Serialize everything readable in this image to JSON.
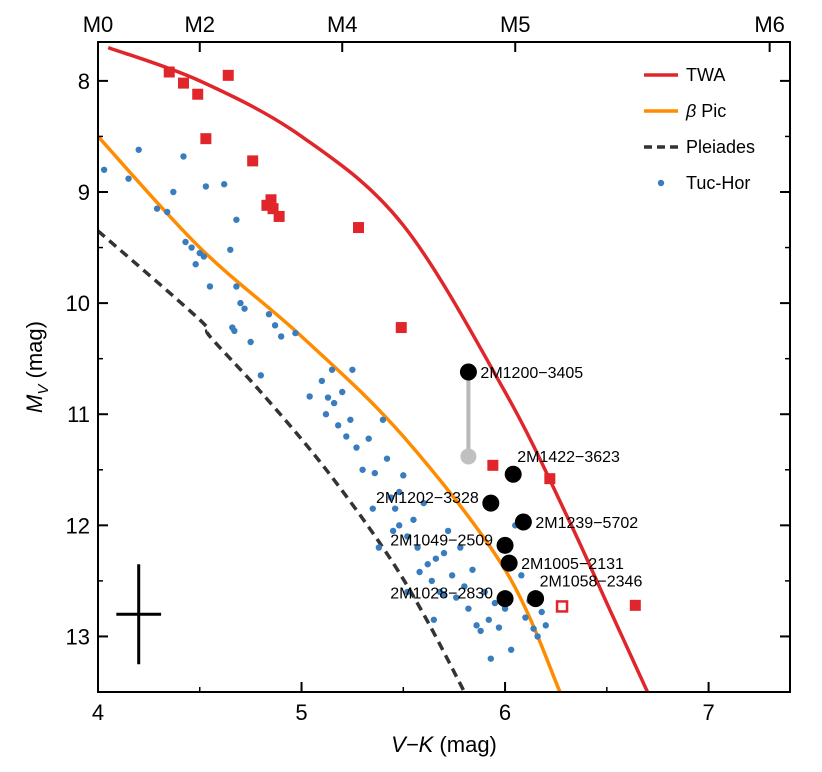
{
  "chart_data": {
    "type": "scatter",
    "xlabel_main": "V−K",
    "xlabel_unit": " (mag)",
    "ylabel_main": "M",
    "ylabel_sub": "V",
    "ylabel_unit": " (mag)",
    "xlim": [
      4,
      7.4
    ],
    "ylim": [
      13.5,
      7.65
    ],
    "x_ticks": [
      4,
      5,
      6,
      7
    ],
    "x_tick_labels": [
      "4",
      "5",
      "6",
      "7"
    ],
    "y_ticks": [
      8,
      9,
      10,
      11,
      12,
      13
    ],
    "y_tick_labels": [
      "8",
      "9",
      "10",
      "11",
      "12",
      "13"
    ],
    "top_ticks": [
      {
        "x": 4.0,
        "label": "M0"
      },
      {
        "x": 4.5,
        "label": "M2"
      },
      {
        "x": 5.2,
        "label": "M4"
      },
      {
        "x": 6.05,
        "label": "M5"
      },
      {
        "x": 7.3,
        "label": "M6"
      }
    ],
    "legend": [
      {
        "name": "TWA",
        "kind": "line",
        "color": "#e0262b"
      },
      {
        "name_greek": "β",
        "name": " Pic",
        "kind": "line",
        "color": "#ff8c00"
      },
      {
        "name": "Pleiades",
        "kind": "dashed",
        "color": "#333333"
      },
      {
        "name": "Tuc-Hor",
        "kind": "dot",
        "color": "#3a7dbf"
      }
    ],
    "curves": {
      "twa": [
        [
          4.05,
          7.7
        ],
        [
          4.5,
          8.0
        ],
        [
          5.0,
          8.5
        ],
        [
          5.5,
          9.3
        ],
        [
          6.0,
          10.8
        ],
        [
          6.3,
          11.9
        ],
        [
          6.5,
          12.7
        ],
        [
          6.7,
          13.5
        ]
      ],
      "bpic": [
        [
          4.0,
          8.5
        ],
        [
          4.5,
          9.5
        ],
        [
          5.0,
          10.3
        ],
        [
          5.5,
          11.2
        ],
        [
          6.0,
          12.4
        ],
        [
          6.27,
          13.5
        ]
      ],
      "pleiades": [
        [
          4.0,
          9.35
        ],
        [
          4.5,
          10.15
        ],
        [
          4.55,
          10.3
        ],
        [
          4.8,
          10.8
        ],
        [
          5.1,
          11.45
        ],
        [
          5.4,
          12.2
        ],
        [
          5.6,
          12.8
        ],
        [
          5.8,
          13.5
        ]
      ]
    },
    "twa_members": [
      [
        4.35,
        7.92
      ],
      [
        4.42,
        8.02
      ],
      [
        4.49,
        8.12
      ],
      [
        4.64,
        7.95
      ],
      [
        4.53,
        8.52
      ],
      [
        4.76,
        8.72
      ],
      [
        4.85,
        9.07
      ],
      [
        4.83,
        9.12
      ],
      [
        4.86,
        9.15
      ],
      [
        4.89,
        9.22
      ],
      [
        5.28,
        9.32
      ],
      [
        5.49,
        10.22
      ],
      [
        5.94,
        11.46
      ],
      [
        6.22,
        11.58
      ],
      [
        6.64,
        12.72
      ]
    ],
    "twa_open": [
      [
        6.28,
        12.73
      ]
    ],
    "tuchor": [
      [
        4.03,
        8.8
      ],
      [
        4.15,
        8.88
      ],
      [
        4.2,
        8.62
      ],
      [
        4.29,
        9.15
      ],
      [
        4.34,
        9.18
      ],
      [
        4.37,
        9.0
      ],
      [
        4.42,
        8.68
      ],
      [
        4.43,
        9.45
      ],
      [
        4.46,
        9.5
      ],
      [
        4.48,
        9.65
      ],
      [
        4.5,
        9.55
      ],
      [
        4.52,
        9.58
      ],
      [
        4.53,
        8.95
      ],
      [
        4.55,
        9.85
      ],
      [
        4.62,
        8.93
      ],
      [
        4.65,
        9.52
      ],
      [
        4.68,
        9.25
      ],
      [
        4.66,
        10.22
      ],
      [
        4.67,
        10.25
      ],
      [
        4.68,
        9.85
      ],
      [
        4.7,
        10.0
      ],
      [
        4.72,
        10.05
      ],
      [
        4.75,
        10.35
      ],
      [
        4.8,
        10.65
      ],
      [
        4.84,
        10.1
      ],
      [
        4.87,
        10.2
      ],
      [
        4.9,
        10.3
      ],
      [
        4.97,
        10.27
      ],
      [
        5.04,
        10.84
      ],
      [
        5.1,
        10.7
      ],
      [
        5.12,
        11.0
      ],
      [
        5.13,
        10.85
      ],
      [
        5.15,
        10.6
      ],
      [
        5.16,
        10.9
      ],
      [
        5.18,
        11.1
      ],
      [
        5.2,
        10.8
      ],
      [
        5.22,
        11.2
      ],
      [
        5.24,
        11.05
      ],
      [
        5.25,
        10.6
      ],
      [
        5.27,
        11.3
      ],
      [
        5.3,
        11.5
      ],
      [
        5.33,
        11.22
      ],
      [
        5.36,
        11.53
      ],
      [
        5.4,
        11.05
      ],
      [
        5.42,
        11.4
      ],
      [
        5.44,
        11.75
      ],
      [
        5.46,
        11.85
      ],
      [
        5.48,
        12.0
      ],
      [
        5.5,
        11.55
      ],
      [
        5.52,
        12.1
      ],
      [
        5.55,
        11.95
      ],
      [
        5.57,
        12.2
      ],
      [
        5.6,
        11.8
      ],
      [
        5.62,
        12.35
      ],
      [
        5.64,
        12.5
      ],
      [
        5.66,
        12.3
      ],
      [
        5.68,
        12.6
      ],
      [
        5.7,
        12.25
      ],
      [
        5.72,
        12.05
      ],
      [
        5.74,
        12.45
      ],
      [
        5.76,
        12.65
      ],
      [
        5.78,
        12.2
      ],
      [
        5.8,
        12.55
      ],
      [
        5.82,
        12.75
      ],
      [
        5.84,
        12.4
      ],
      [
        5.86,
        12.9
      ],
      [
        5.88,
        12.95
      ],
      [
        5.9,
        12.6
      ],
      [
        5.92,
        12.85
      ],
      [
        5.93,
        13.2
      ],
      [
        5.95,
        12.7
      ],
      [
        5.97,
        12.92
      ],
      [
        6.0,
        12.75
      ],
      [
        6.03,
        13.12
      ],
      [
        6.05,
        12.0
      ],
      [
        6.08,
        12.45
      ],
      [
        6.1,
        12.83
      ],
      [
        6.12,
        12.68
      ],
      [
        6.14,
        12.93
      ],
      [
        6.16,
        13.0
      ],
      [
        6.18,
        12.78
      ],
      [
        6.2,
        12.9
      ],
      [
        5.35,
        11.85
      ],
      [
        5.38,
        12.2
      ],
      [
        5.45,
        12.05
      ],
      [
        5.58,
        12.42
      ],
      [
        5.65,
        12.85
      ],
      [
        5.7,
        12.62
      ],
      [
        5.48,
        11.7
      ],
      [
        5.52,
        12.6
      ]
    ],
    "targets": [
      {
        "name": "2M1200−3405",
        "x": 5.82,
        "y": 10.62,
        "anchor": "right"
      },
      {
        "name": "2M1422−3623",
        "x": 6.04,
        "y": 11.54,
        "anchor": "right-up"
      },
      {
        "name": "2M1202−3328",
        "x": 5.93,
        "y": 11.8,
        "anchor": "left"
      },
      {
        "name": "2M1239−5702",
        "x": 6.09,
        "y": 11.97,
        "anchor": "right"
      },
      {
        "name": "2M1049−2509",
        "x": 6.0,
        "y": 12.18,
        "anchor": "left"
      },
      {
        "name": "2M1005−2131",
        "x": 6.02,
        "y": 12.34,
        "anchor": "right"
      },
      {
        "name": "2M1028−2830",
        "x": 6.0,
        "y": 12.66,
        "anchor": "left"
      },
      {
        "name": "2M1058−2346",
        "x": 6.15,
        "y": 12.66,
        "anchor": "right-up"
      }
    ],
    "gray_point": {
      "x": 5.82,
      "y": 11.38
    },
    "errorbar": {
      "x": 4.2,
      "y": 12.8,
      "xerr": 0.11,
      "yerr": 0.45
    }
  }
}
